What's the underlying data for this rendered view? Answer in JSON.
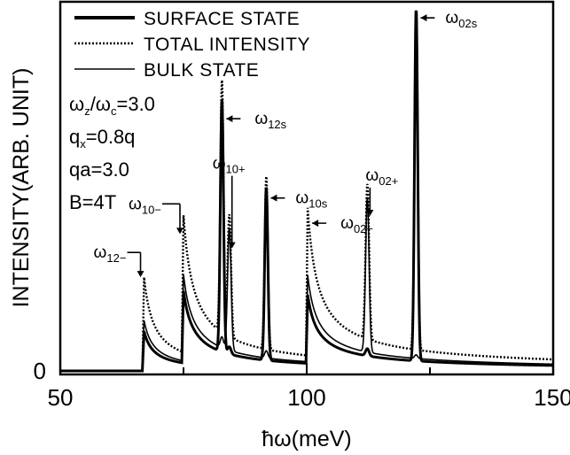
{
  "chart_data": {
    "type": "line",
    "xlabel": "ħω(meV)",
    "ylabel": "INTENSITY(ARB. UNIT)",
    "xlim": [
      50,
      150
    ],
    "ylim": [
      0,
      1
    ],
    "xticks": [
      "50",
      "100",
      "150"
    ],
    "yticks": [
      "0"
    ],
    "grid": false,
    "legend_position": "top-left",
    "legend": [
      {
        "label": "SURFACE STATE",
        "style": "thick-solid"
      },
      {
        "label": "TOTAL INTENSITY",
        "style": "dotted"
      },
      {
        "label": "BULK STATE",
        "style": "thin-solid"
      }
    ],
    "parameters": [
      {
        "base": "ω",
        "sub1": "z",
        "mid": "/ω",
        "sub2": "c",
        "rest": "=3.0"
      },
      {
        "base": "q",
        "sub1": "x",
        "mid": "",
        "sub2": "",
        "rest": "=0.8q"
      },
      {
        "base": "qa=3.0",
        "sub1": "",
        "mid": "",
        "sub2": "",
        "rest": ""
      },
      {
        "base": "B=4T",
        "sub1": "",
        "mid": "",
        "sub2": "",
        "rest": ""
      }
    ],
    "peaks": [
      {
        "label": "12−",
        "x": 67,
        "total": 0.26,
        "bulk": 0.14,
        "surface": 0.11,
        "kind": "bulk-edge"
      },
      {
        "label": "10−",
        "x": 75,
        "total": 0.38,
        "bulk": 0.24,
        "surface": 0.2,
        "kind": "bulk-edge"
      },
      {
        "label": "12s",
        "x": 82.8,
        "total": 0.7,
        "bulk": 0.03,
        "surface": 0.7,
        "kind": "surface"
      },
      {
        "label": "10+",
        "x": 84.3,
        "total": 0.34,
        "bulk": 0.34,
        "surface": 0.02,
        "kind": "bulk-sharp"
      },
      {
        "label": "10s",
        "x": 91.8,
        "total": 0.48,
        "bulk": 0.02,
        "surface": 0.48,
        "kind": "surface"
      },
      {
        "label": "02−",
        "x": 100.2,
        "total": 0.41,
        "bulk": 0.24,
        "surface": 0.19,
        "kind": "bulk-edge"
      },
      {
        "label": "02+",
        "x": 112.3,
        "total": 0.43,
        "bulk": 0.43,
        "surface": 0.02,
        "kind": "bulk-sharp"
      },
      {
        "label": "02s",
        "x": 122.2,
        "total": 0.98,
        "bulk": 0.01,
        "surface": 0.98,
        "kind": "surface"
      }
    ]
  }
}
